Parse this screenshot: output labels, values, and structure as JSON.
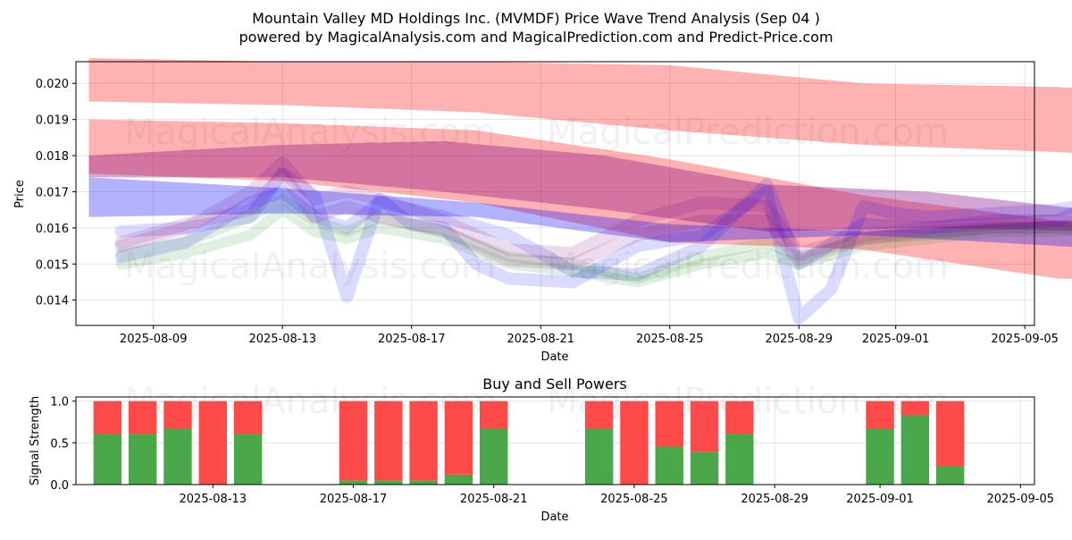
{
  "chart_data": [
    {
      "type": "area",
      "title": "Mountain Valley MD Holdings Inc. (MVMDF) Price Wave Trend Analysis (Sep 04 )",
      "subtitle": "powered by MagicalAnalysis.com and MagicalPrediction.com and Predict-Price.com",
      "xlabel": "Date",
      "ylabel": "Price",
      "ylim": [
        0.0133,
        0.0206
      ],
      "x_range": [
        "2025-08-06.6",
        "2025-09-05.3"
      ],
      "x_ticks": [
        "2025-08-09",
        "2025-08-13",
        "2025-08-17",
        "2025-08-21",
        "2025-08-25",
        "2025-08-29",
        "2025-09-01",
        "2025-09-05"
      ],
      "y_ticks": [
        "0.014",
        "0.015",
        "0.016",
        "0.017",
        "0.018",
        "0.019",
        "0.020"
      ],
      "grid": true,
      "watermarks": [
        "MagicalAnalysis.com",
        "MagicalPrediction.com",
        "MagicalAnalysis.com",
        "MagicalPrediction.com"
      ],
      "colors": {
        "red": "#ff0000",
        "blue": "#0000ff",
        "green": "#008000",
        "purple": "#800080"
      },
      "bands": [
        {
          "name": "red-upper-band",
          "color": "red",
          "opacity": 0.3,
          "x": [
            0,
            6,
            12,
            18,
            24,
            30,
            36,
            41.9
          ],
          "upper": [
            0.0207,
            0.0206,
            0.0206,
            0.0205,
            0.02,
            0.0199,
            0.0196,
            0.0195
          ],
          "lower": [
            0.0195,
            0.0194,
            0.0192,
            0.0187,
            0.0183,
            0.0181,
            0.0178,
            0.0176
          ]
        },
        {
          "name": "red-lower-band",
          "color": "red",
          "opacity": 0.3,
          "x": [
            0,
            6,
            12,
            18,
            24,
            30,
            36,
            41.9
          ],
          "upper": [
            0.019,
            0.0189,
            0.0187,
            0.0179,
            0.0169,
            0.0162,
            0.0158,
            0.0159
          ],
          "lower": [
            0.0175,
            0.0173,
            0.0167,
            0.0156,
            0.0154,
            0.0146,
            0.0145,
            0.0142
          ]
        },
        {
          "name": "blue-band",
          "color": "blue",
          "opacity": 0.3,
          "x": [
            0,
            6,
            12,
            18,
            24,
            30,
            36,
            41.9
          ],
          "upper": [
            0.0174,
            0.0171,
            0.0167,
            0.0161,
            0.0159,
            0.0162,
            0.0163,
            0.0169
          ],
          "lower": [
            0.0163,
            0.0164,
            0.0163,
            0.0156,
            0.0158,
            0.0155,
            0.0152,
            0.0152
          ]
        },
        {
          "name": "purple-band",
          "color": "purple",
          "opacity": 0.35,
          "x": [
            0,
            6,
            11,
            16,
            21,
            26,
            32,
            38,
            41.9
          ],
          "upper": [
            0.018,
            0.0183,
            0.0184,
            0.018,
            0.0172,
            0.017,
            0.0164,
            0.0163,
            0.0162
          ],
          "lower": [
            0.0174,
            0.0174,
            0.017,
            0.0165,
            0.0159,
            0.016,
            0.0159,
            0.0158,
            0.0156
          ]
        }
      ],
      "wave_lines": [
        {
          "name": "blue-wave-1",
          "color": "blue",
          "opacity": 0.14,
          "width": 14,
          "x": [
            1,
            3,
            5,
            6,
            7,
            8,
            9,
            10,
            11,
            12,
            13,
            15,
            17,
            19,
            21,
            22,
            23,
            24,
            25,
            26,
            28,
            30,
            32,
            34,
            36,
            37,
            37.5
          ],
          "y": [
            0.0159,
            0.016,
            0.0163,
            0.0175,
            0.0169,
            0.0141,
            0.0168,
            0.0161,
            0.016,
            0.015,
            0.0146,
            0.0145,
            0.0155,
            0.0158,
            0.017,
            0.0135,
            0.0143,
            0.0166,
            0.0164,
            0.0163,
            0.0164,
            0.0165,
            0.0168,
            0.0177,
            0.018,
            0.0168,
            0.0167
          ]
        },
        {
          "name": "blue-wave-2",
          "color": "blue",
          "opacity": 0.14,
          "width": 14,
          "x": [
            1,
            3,
            5,
            6,
            7,
            8,
            9,
            11,
            13,
            15,
            17,
            19,
            21,
            22,
            24,
            26,
            28,
            30,
            32,
            34,
            36,
            37.5
          ],
          "y": [
            0.0152,
            0.0156,
            0.0167,
            0.017,
            0.0163,
            0.016,
            0.0167,
            0.0163,
            0.0158,
            0.0148,
            0.0147,
            0.0155,
            0.0172,
            0.015,
            0.0161,
            0.016,
            0.0162,
            0.0162,
            0.017,
            0.0175,
            0.0171,
            0.0166
          ]
        },
        {
          "name": "green-wave-1",
          "color": "green",
          "opacity": 0.12,
          "width": 12,
          "x": [
            1,
            3,
            5,
            6,
            7,
            8,
            9,
            11,
            13,
            15,
            17,
            19,
            21,
            22,
            24,
            26,
            28,
            30,
            32,
            34,
            36,
            37.5
          ],
          "y": [
            0.0153,
            0.0156,
            0.0163,
            0.0168,
            0.0162,
            0.0159,
            0.0163,
            0.0159,
            0.0152,
            0.015,
            0.0146,
            0.0152,
            0.0156,
            0.0152,
            0.0157,
            0.0158,
            0.016,
            0.016,
            0.0161,
            0.0167,
            0.017,
            0.0167
          ]
        },
        {
          "name": "green-wave-2",
          "color": "green",
          "opacity": 0.12,
          "width": 12,
          "x": [
            1,
            3,
            5,
            6,
            7,
            8,
            9,
            11,
            13,
            15,
            17,
            19,
            21,
            22,
            24,
            26,
            28,
            30,
            32,
            34,
            36,
            37.5
          ],
          "y": [
            0.015,
            0.0153,
            0.0158,
            0.0165,
            0.0159,
            0.0157,
            0.016,
            0.0157,
            0.015,
            0.0148,
            0.0145,
            0.015,
            0.0153,
            0.015,
            0.0155,
            0.0157,
            0.0159,
            0.0159,
            0.016,
            0.0165,
            0.0168,
            0.0165
          ]
        },
        {
          "name": "purple-wave-1",
          "color": "purple",
          "opacity": 0.14,
          "width": 14,
          "x": [
            1,
            3,
            5,
            6,
            7,
            8,
            9,
            11,
            13,
            15,
            17,
            19,
            21,
            22,
            24,
            26,
            28,
            30,
            32,
            34,
            36,
            37.5
          ],
          "y": [
            0.0155,
            0.016,
            0.017,
            0.0178,
            0.0168,
            0.017,
            0.0168,
            0.0162,
            0.0154,
            0.0153,
            0.0162,
            0.0167,
            0.0166,
            0.0153,
            0.0158,
            0.016,
            0.0161,
            0.0162,
            0.0161,
            0.0176,
            0.017,
            0.0167
          ]
        },
        {
          "name": "purple-wave-2",
          "color": "purple",
          "opacity": 0.14,
          "width": 14,
          "x": [
            1,
            3,
            5,
            6,
            7,
            8,
            9,
            11,
            13,
            15,
            17,
            19,
            21,
            22,
            24,
            26,
            28,
            30,
            32,
            34,
            36,
            37.5
          ],
          "y": [
            0.0156,
            0.0161,
            0.0165,
            0.0175,
            0.0163,
            0.0166,
            0.0163,
            0.0159,
            0.0151,
            0.015,
            0.0158,
            0.0162,
            0.0162,
            0.0151,
            0.0157,
            0.0159,
            0.016,
            0.016,
            0.0159,
            0.017,
            0.0168,
            0.0165
          ]
        }
      ]
    },
    {
      "type": "bar",
      "title": "Buy and Sell Powers",
      "xlabel": "Date",
      "ylabel": "Signal Strength",
      "ylim": [
        0,
        1.05
      ],
      "x_range": [
        "2025-08-09.1",
        "2025-09-05.4"
      ],
      "x_ticks": [
        "2025-08-13",
        "2025-08-17",
        "2025-08-21",
        "2025-08-25",
        "2025-08-29",
        "2025-09-01",
        "2025-09-05"
      ],
      "y_ticks": [
        "0.0",
        "0.5",
        "1.0"
      ],
      "grid": true,
      "colors": {
        "buy": "#4aa84a",
        "sell": "#ff4a4a"
      },
      "series": [
        {
          "name": "Buy",
          "color": "buy"
        },
        {
          "name": "Sell",
          "color": "sell"
        }
      ],
      "categories": [
        "2025-08-10",
        "2025-08-11",
        "2025-08-12",
        "2025-08-13",
        "2025-08-14",
        "2025-08-17",
        "2025-08-18",
        "2025-08-19",
        "2025-08-20",
        "2025-08-21",
        "2025-08-24",
        "2025-08-25",
        "2025-08-26",
        "2025-08-27",
        "2025-08-28",
        "2025-09-01",
        "2025-09-02",
        "2025-09-03"
      ],
      "bar_x": [
        1,
        2,
        3,
        4,
        5,
        8,
        9,
        10,
        11,
        12,
        15,
        16,
        17,
        18,
        19,
        23,
        24,
        25
      ],
      "buy_values": [
        0.61,
        0.61,
        0.67,
        0.0,
        0.61,
        0.05,
        0.05,
        0.05,
        0.12,
        0.67,
        0.67,
        0.0,
        0.45,
        0.39,
        0.61,
        0.67,
        0.83,
        0.22
      ]
    }
  ]
}
